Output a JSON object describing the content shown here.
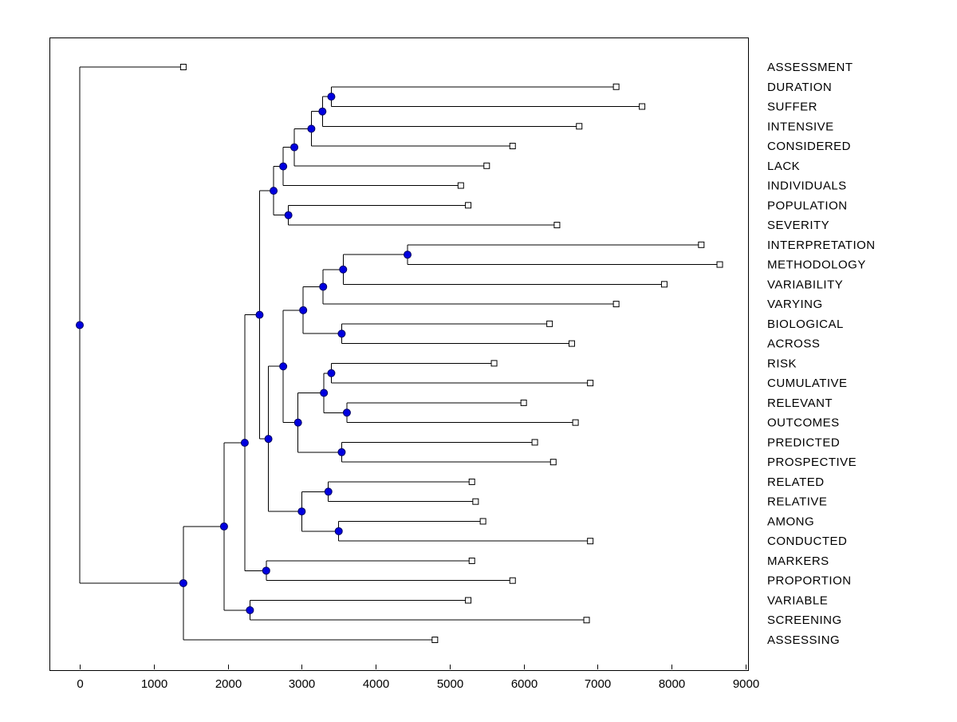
{
  "figure": {
    "background": "#ffffff",
    "plot_box_color": "#000000"
  },
  "chart_data": {
    "type": "dendrogram",
    "subtype": "phylogenetic-tree",
    "orientation": "horizontal-right-labels",
    "title": "",
    "xlabel": "",
    "ylabel": "",
    "grid": false,
    "legend": null,
    "xlim": [
      0,
      9000
    ],
    "xticks": [
      0,
      1000,
      2000,
      3000,
      4000,
      5000,
      6000,
      7000,
      8000,
      9000
    ],
    "leaf_order": [
      "ASSESSMENT",
      "DURATION",
      "SUFFER",
      "INTENSIVE",
      "CONSIDERED",
      "LACK",
      "INDIVIDUALS",
      "POPULATION",
      "SEVERITY",
      "INTERPRETATION",
      "METHODOLOGY",
      "VARIABILITY",
      "VARYING",
      "BIOLOGICAL",
      "ACROSS",
      "RISK",
      "CUMULATIVE",
      "RELEVANT",
      "OUTCOMES",
      "PREDICTED",
      "PROSPECTIVE",
      "RELATED",
      "RELATIVE",
      "AMONG",
      "CONDUCTED",
      "MARKERS",
      "PROPORTION",
      "VARIABLE",
      "SCREENING",
      "ASSESSING"
    ],
    "style": {
      "line_color": "#000000",
      "axis_color": "#000000",
      "node_marker": {
        "shape": "circle",
        "fill": "#0000e0",
        "stroke": "#000060",
        "radius": 4.5
      },
      "leaf_marker": {
        "shape": "square",
        "fill": "#ffffff",
        "stroke": "#000000",
        "size": 7
      },
      "label_font_px": 15,
      "tick_font_px": 15
    },
    "tree": {
      "x": 0,
      "children": [
        {
          "label": "ASSESSMENT",
          "x": 1400
        },
        {
          "x": 1400,
          "children": [
            {
              "x": 1950,
              "children": [
                {
                  "x": 2230,
                  "children": [
                    {
                      "x": 2430,
                      "children": [
                        {
                          "x": 2620,
                          "children": [
                            {
                              "x": 2750,
                              "children": [
                                {
                                  "x": 2900,
                                  "children": [
                                    {
                                      "x": 3130,
                                      "children": [
                                        {
                                          "x": 3280,
                                          "children": [
                                            {
                                              "x": 3400,
                                              "children": [
                                                {
                                                  "label": "DURATION",
                                                  "x": 7250
                                                },
                                                {
                                                  "label": "SUFFER",
                                                  "x": 7600
                                                }
                                              ]
                                            },
                                            {
                                              "label": "INTENSIVE",
                                              "x": 6750
                                            }
                                          ]
                                        },
                                        {
                                          "label": "CONSIDERED",
                                          "x": 5850
                                        }
                                      ]
                                    },
                                    {
                                      "label": "LACK",
                                      "x": 5500
                                    }
                                  ]
                                },
                                {
                                  "label": "INDIVIDUALS",
                                  "x": 5150
                                }
                              ]
                            },
                            {
                              "x": 2820,
                              "children": [
                                {
                                  "label": "POPULATION",
                                  "x": 5250
                                },
                                {
                                  "label": "SEVERITY",
                                  "x": 6450
                                }
                              ]
                            }
                          ]
                        },
                        {
                          "x": 2550,
                          "children": [
                            {
                              "x": 2750,
                              "children": [
                                {
                                  "x": 3020,
                                  "children": [
                                    {
                                      "x": 3290,
                                      "children": [
                                        {
                                          "x": 3560,
                                          "children": [
                                            {
                                              "x": 4430,
                                              "children": [
                                                {
                                                  "label": "INTERPRETATION",
                                                  "x": 8400
                                                },
                                                {
                                                  "label": "METHODOLOGY",
                                                  "x": 8650
                                                }
                                              ]
                                            },
                                            {
                                              "label": "VARIABILITY",
                                              "x": 7900
                                            }
                                          ]
                                        },
                                        {
                                          "label": "VARYING",
                                          "x": 7250
                                        }
                                      ]
                                    },
                                    {
                                      "x": 3540,
                                      "children": [
                                        {
                                          "label": "BIOLOGICAL",
                                          "x": 6350
                                        },
                                        {
                                          "label": "ACROSS",
                                          "x": 6650
                                        }
                                      ]
                                    }
                                  ]
                                },
                                {
                                  "x": 2950,
                                  "children": [
                                    {
                                      "x": 3300,
                                      "children": [
                                        {
                                          "x": 3400,
                                          "children": [
                                            {
                                              "label": "RISK",
                                              "x": 5600
                                            },
                                            {
                                              "label": "CUMULATIVE",
                                              "x": 6900
                                            }
                                          ]
                                        },
                                        {
                                          "x": 3610,
                                          "children": [
                                            {
                                              "label": "RELEVANT",
                                              "x": 6000
                                            },
                                            {
                                              "label": "OUTCOMES",
                                              "x": 6700
                                            }
                                          ]
                                        }
                                      ]
                                    },
                                    {
                                      "x": 3540,
                                      "children": [
                                        {
                                          "label": "PREDICTED",
                                          "x": 6150
                                        },
                                        {
                                          "label": "PROSPECTIVE",
                                          "x": 6400
                                        }
                                      ]
                                    }
                                  ]
                                }
                              ]
                            },
                            {
                              "x": 3000,
                              "children": [
                                {
                                  "x": 3360,
                                  "children": [
                                    {
                                      "label": "RELATED",
                                      "x": 5300
                                    },
                                    {
                                      "label": "RELATIVE",
                                      "x": 5350
                                    }
                                  ]
                                },
                                {
                                  "x": 3500,
                                  "children": [
                                    {
                                      "label": "AMONG",
                                      "x": 5450
                                    },
                                    {
                                      "label": "CONDUCTED",
                                      "x": 6900
                                    }
                                  ]
                                }
                              ]
                            }
                          ]
                        }
                      ]
                    },
                    {
                      "x": 2520,
                      "children": [
                        {
                          "label": "MARKERS",
                          "x": 5300
                        },
                        {
                          "label": "PROPORTION",
                          "x": 5850
                        }
                      ]
                    }
                  ]
                },
                {
                  "x": 2300,
                  "children": [
                    {
                      "label": "VARIABLE",
                      "x": 5250
                    },
                    {
                      "label": "SCREENING",
                      "x": 6850
                    }
                  ]
                }
              ]
            },
            {
              "label": "ASSESSING",
              "x": 4800
            }
          ]
        }
      ]
    }
  }
}
